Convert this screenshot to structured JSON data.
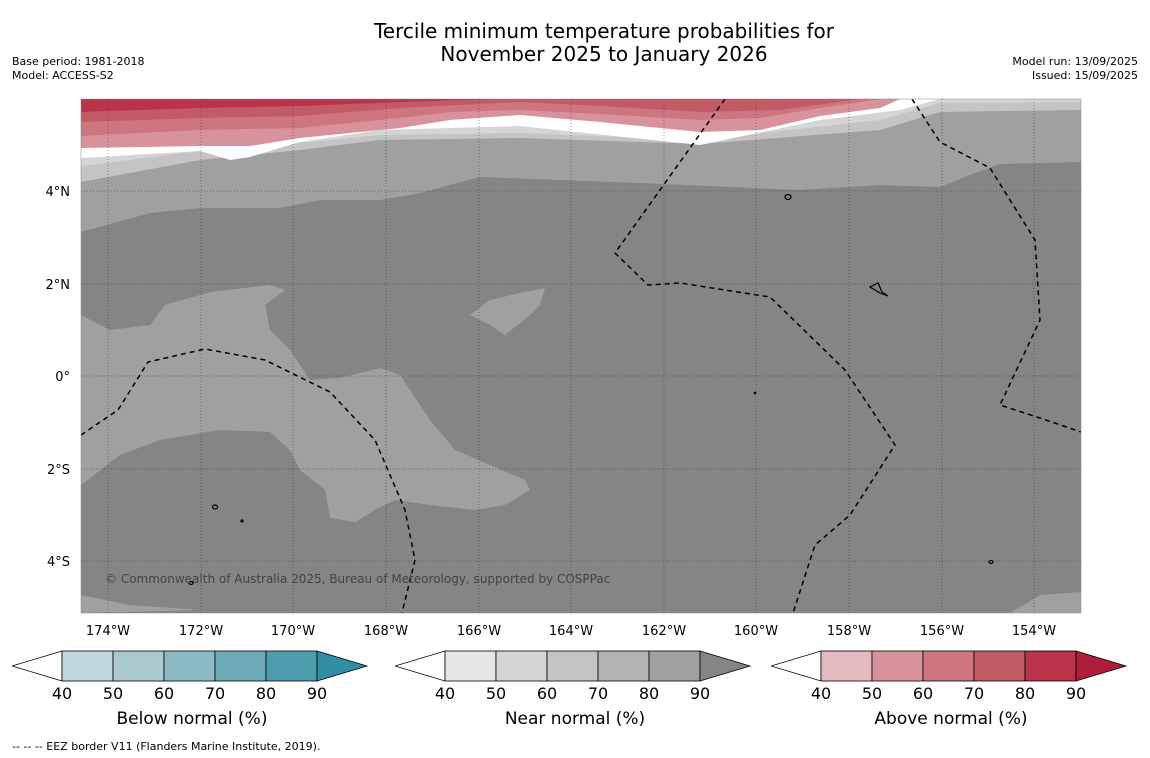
{
  "title": {
    "line1": "Tercile minimum temperature probabilities for",
    "line2": "November 2025 to January 2026"
  },
  "meta_left": {
    "base_period": "Base period: 1981-2018",
    "model": "Model: ACCESS-S2"
  },
  "meta_right": {
    "model_run": "Model run: 13/09/2025",
    "issued": "Issued: 15/09/2025"
  },
  "map": {
    "lon_labels": [
      "174°W",
      "172°W",
      "170°W",
      "168°W",
      "166°W",
      "164°W",
      "162°W",
      "160°W",
      "158°W",
      "156°W",
      "154°W"
    ],
    "lat_labels": [
      "4°N",
      "2°N",
      "0°",
      "2°S",
      "4°S"
    ],
    "copyright": "© Commonwealth of Australia 2025, Bureau of Meteorology, supported by COSPPac"
  },
  "colorbars": [
    {
      "title": "Below normal (%)",
      "ticks": [
        "40",
        "50",
        "60",
        "70",
        "80",
        "90"
      ],
      "colors": [
        "#ffffff",
        "#bfd7dd",
        "#a9c9cf",
        "#8cbac5",
        "#6eabb9",
        "#4d9daf",
        "#2f8ea1"
      ]
    },
    {
      "title": "Near normal (%)",
      "ticks": [
        "40",
        "50",
        "60",
        "70",
        "80",
        "90"
      ],
      "colors": [
        "#ffffff",
        "#e6e6e6",
        "#d5d5d5",
        "#c4c4c4",
        "#b3b3b3",
        "#a0a0a0",
        "#858585"
      ]
    },
    {
      "title": "Above normal (%)",
      "ticks": [
        "40",
        "50",
        "60",
        "70",
        "80",
        "90"
      ],
      "colors": [
        "#ffffff",
        "#e4b9c0",
        "#d8929c",
        "#cd7680",
        "#c35b66",
        "#b9344a",
        "#ae1d3b"
      ]
    }
  ],
  "footnote": "--  --  -- EEZ border V11 (Flanders Marine Institute, 2019)."
}
